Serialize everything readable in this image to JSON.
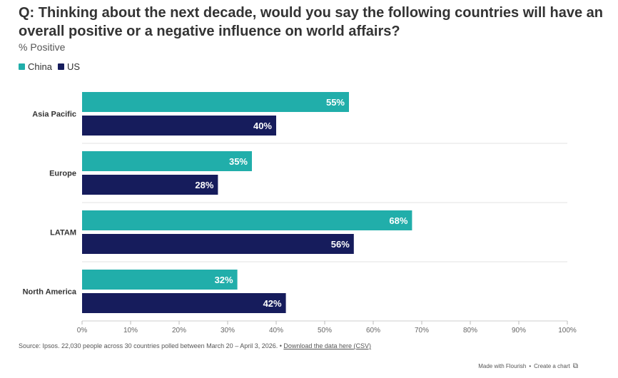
{
  "header": {
    "title": "Q: Thinking about the next decade, would you say the following countries will have an overall positive or a negative influence on world affairs?",
    "subtitle": "% Positive"
  },
  "legend": [
    {
      "label": "China",
      "color": "#21aeaa"
    },
    {
      "label": "US",
      "color": "#161c5c"
    }
  ],
  "chart_data": {
    "type": "bar",
    "orientation": "horizontal",
    "categories": [
      "Asia Pacific",
      "Europe",
      "LATAM",
      "North America"
    ],
    "series": [
      {
        "name": "China",
        "values": [
          55,
          35,
          68,
          32
        ],
        "color": "#21aeaa"
      },
      {
        "name": "US",
        "values": [
          40,
          28,
          56,
          42
        ],
        "color": "#161c5c"
      }
    ],
    "value_suffix": "%",
    "xlim": [
      0,
      100
    ],
    "xticks": [
      "0%",
      "10%",
      "20%",
      "30%",
      "40%",
      "50%",
      "60%",
      "70%",
      "80%",
      "90%",
      "100%"
    ],
    "title": "Q: Thinking about the next decade, would you say the following countries will have an overall positive or a negative influence on world affairs?",
    "subtitle": "% Positive",
    "legend_position": "top-left"
  },
  "footer": {
    "source": "Source: Ipsos. 22,030 people across 30 countries polled between March 20 – April 3, 2026. • ",
    "download_link": "Download the data here (CSV)",
    "credit_made": "Made with Flourish",
    "credit_sep": " • ",
    "credit_create": "Create a chart"
  }
}
